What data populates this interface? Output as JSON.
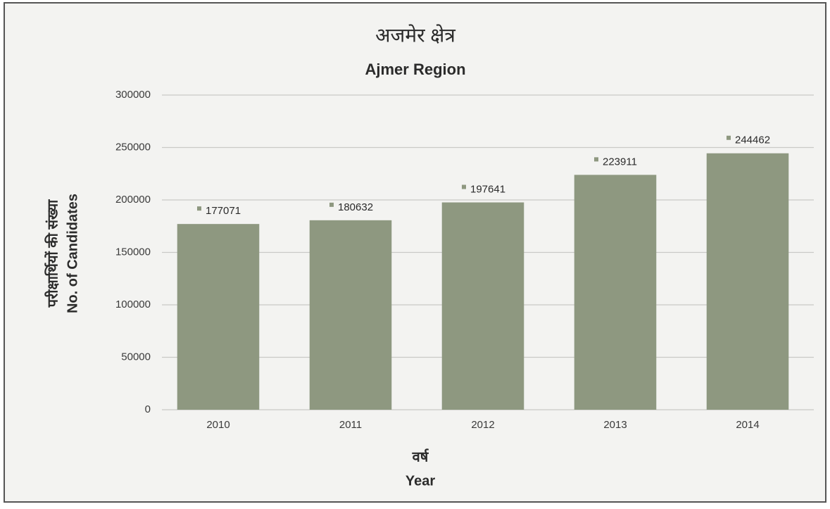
{
  "chart_data": {
    "type": "bar",
    "title": "अजमेर क्षेत्र",
    "subtitle": "Ajmer Region",
    "ylabel": [
      "परीक्षार्थियों की संख्या",
      "No. of Candidates"
    ],
    "xlabel": [
      "वर्ष",
      "Year"
    ],
    "categories": [
      "2010",
      "2011",
      "2012",
      "2013",
      "2014"
    ],
    "values": [
      177071,
      180632,
      197641,
      223911,
      244462
    ],
    "color": "#8e9880",
    "ylim": [
      0,
      300000
    ],
    "yticks": [
      0,
      50000,
      100000,
      150000,
      200000,
      250000,
      300000
    ],
    "grid": true
  }
}
